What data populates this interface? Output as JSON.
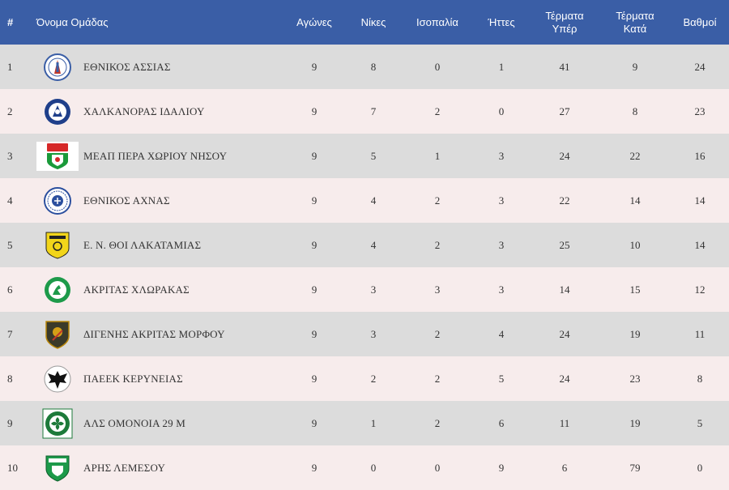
{
  "headers": {
    "pos": "#",
    "team": "Όνομα Ομάδας",
    "played": "Αγώνες",
    "wins": "Νίκες",
    "draws": "Ισοπαλία",
    "losses": "Ήττες",
    "goals_for_1": "Τέρματα",
    "goals_for_2": "Υπέρ",
    "goals_against_1": "Τέρματα",
    "goals_against_2": "Κατά",
    "points": "Βαθμοί"
  },
  "colors": {
    "header_bg": "#3a5ea6",
    "row_odd": "#dcdcdc",
    "row_even": "#f7ecec"
  },
  "rows": [
    {
      "pos": "1",
      "team": "ΕΘΝΙΚΟΣ ΑΣΣΙΑΣ",
      "played": "9",
      "wins": "8",
      "draws": "0",
      "losses": "1",
      "gf": "41",
      "ga": "9",
      "pts": "24",
      "logo": "ethnikos-assias-crest"
    },
    {
      "pos": "2",
      "team": "ΧΑΛΚΑΝΟΡΑΣ ΙΔΑΛΙΟΥ",
      "played": "9",
      "wins": "7",
      "draws": "2",
      "losses": "0",
      "gf": "27",
      "ga": "8",
      "pts": "23",
      "logo": "chalkanoras-crest"
    },
    {
      "pos": "3",
      "team": "ΜΕΑΠ ΠΕΡΑ ΧΩΡΙΟΥ ΝΗΣΟΥ",
      "played": "9",
      "wins": "5",
      "draws": "1",
      "losses": "3",
      "gf": "24",
      "ga": "22",
      "pts": "16",
      "logo": "meap-crest"
    },
    {
      "pos": "4",
      "team": "ΕΘΝΙΚΟΣ ΑΧΝΑΣ",
      "played": "9",
      "wins": "4",
      "draws": "2",
      "losses": "3",
      "gf": "22",
      "ga": "14",
      "pts": "14",
      "logo": "ethnikos-achnas-crest"
    },
    {
      "pos": "5",
      "team": "Ε. Ν. ΘΟΙ ΛΑΚΑΤΑΜΙΑΣ",
      "played": "9",
      "wins": "4",
      "draws": "2",
      "losses": "3",
      "gf": "25",
      "ga": "10",
      "pts": "14",
      "logo": "thoi-crest"
    },
    {
      "pos": "6",
      "team": "ΑΚΡΙΤΑΣ ΧΛΩΡΑΚΑΣ",
      "played": "9",
      "wins": "3",
      "draws": "3",
      "losses": "3",
      "gf": "14",
      "ga": "15",
      "pts": "12",
      "logo": "akritas-crest"
    },
    {
      "pos": "7",
      "team": "ΔΙΓΕΝΗΣ ΑΚΡΙΤΑΣ ΜΟΡΦΟΥ",
      "played": "9",
      "wins": "3",
      "draws": "2",
      "losses": "4",
      "gf": "24",
      "ga": "19",
      "pts": "11",
      "logo": "digenis-crest"
    },
    {
      "pos": "8",
      "team": "ΠΑΕΕΚ ΚΕΡΥΝΕΙΑΣ",
      "played": "9",
      "wins": "2",
      "draws": "2",
      "losses": "5",
      "gf": "24",
      "ga": "23",
      "pts": "8",
      "logo": "paeek-crest"
    },
    {
      "pos": "9",
      "team": "ΑΛΣ ΟΜΟΝΟΙΑ 29 Μ",
      "played": "9",
      "wins": "1",
      "draws": "2",
      "losses": "6",
      "gf": "11",
      "ga": "19",
      "pts": "5",
      "logo": "omonoia-crest"
    },
    {
      "pos": "10",
      "team": "ΑΡΗΣ ΛΕΜΕΣΟΥ",
      "played": "9",
      "wins": "0",
      "draws": "0",
      "losses": "9",
      "gf": "6",
      "ga": "79",
      "pts": "0",
      "logo": "aris-crest"
    }
  ]
}
